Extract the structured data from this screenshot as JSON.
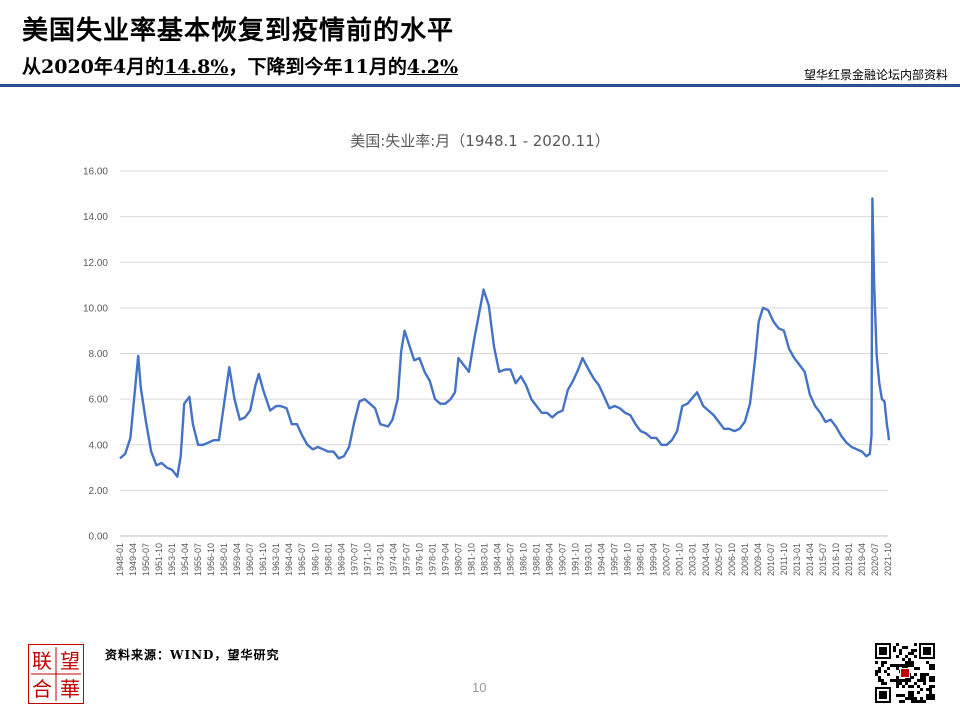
{
  "header": {
    "title": "美国失业率基本恢复到疫情前的水平",
    "subtitle_parts": [
      "从2020年4月的",
      "14.8%",
      "，下降到今年11月的",
      "4.2%"
    ],
    "internal_note": "望华红景金融论坛内部资料"
  },
  "footer": {
    "source": "资料来源：WIND，望华研究",
    "page_number": "10",
    "logo_chars": [
      "联",
      "望",
      "合",
      "華"
    ]
  },
  "colors": {
    "accent": "#2e4f8c",
    "line": "#4472c4",
    "logo": "#c00000"
  },
  "chart_data": {
    "type": "line",
    "title": "美国:失业率:月（1948.1 - 2020.11）",
    "ylim": [
      0,
      16
    ],
    "yticks": [
      "0.00",
      "2.00",
      "4.00",
      "6.00",
      "8.00",
      "10.00",
      "12.00",
      "14.00",
      "16.00"
    ],
    "xlim": [
      "1948-01",
      "2021-10"
    ],
    "xticks": [
      "1948-01",
      "1949-04",
      "1950-07",
      "1951-10",
      "1953-01",
      "1954-04",
      "1955-07",
      "1956-10",
      "1958-01",
      "1959-04",
      "1960-07",
      "1961-10",
      "1963-01",
      "1964-04",
      "1965-07",
      "1966-10",
      "1968-01",
      "1969-04",
      "1970-07",
      "1971-10",
      "1973-01",
      "1974-04",
      "1975-07",
      "1976-10",
      "1978-01",
      "1979-04",
      "1980-07",
      "1981-10",
      "1983-01",
      "1984-04",
      "1985-07",
      "1986-10",
      "1988-01",
      "1989-04",
      "1990-07",
      "1991-10",
      "1993-01",
      "1994-04",
      "1995-07",
      "1996-10",
      "1998-01",
      "1999-04",
      "2000-07",
      "2001-10",
      "2003-01",
      "2004-04",
      "2005-07",
      "2006-10",
      "2008-01",
      "2009-04",
      "2010-07",
      "2011-10",
      "2013-01",
      "2014-04",
      "2015-07",
      "2016-10",
      "2018-01",
      "2019-04",
      "2020-07",
      "2021-10"
    ],
    "grid": true,
    "series": [
      {
        "x": [
          "1948-01",
          "1948-07",
          "1949-01",
          "1949-07",
          "1949-10",
          "1950-01",
          "1950-07",
          "1951-01",
          "1951-07",
          "1952-01",
          "1952-07",
          "1953-01",
          "1953-07",
          "1953-11",
          "1954-03",
          "1954-09",
          "1955-01",
          "1955-07",
          "1956-01",
          "1956-07",
          "1957-01",
          "1957-07",
          "1958-01",
          "1958-07",
          "1959-01",
          "1959-07",
          "1960-01",
          "1960-07",
          "1961-01",
          "1961-05",
          "1961-10",
          "1962-06",
          "1963-01",
          "1963-06",
          "1964-01",
          "1964-07",
          "1965-01",
          "1965-07",
          "1966-01",
          "1966-07",
          "1967-01",
          "1967-07",
          "1968-01",
          "1968-07",
          "1969-01",
          "1969-07",
          "1970-01",
          "1970-07",
          "1971-01",
          "1971-07",
          "1972-01",
          "1972-07",
          "1973-01",
          "1973-10",
          "1974-03",
          "1974-09",
          "1975-01",
          "1975-05",
          "1975-10",
          "1976-04",
          "1976-10",
          "1977-04",
          "1977-10",
          "1978-04",
          "1978-10",
          "1979-04",
          "1979-10",
          "1980-03",
          "1980-07",
          "1981-01",
          "1981-07",
          "1982-01",
          "1982-07",
          "1982-12",
          "1983-06",
          "1983-12",
          "1984-06",
          "1985-01",
          "1985-07",
          "1986-01",
          "1986-07",
          "1987-01",
          "1987-07",
          "1988-01",
          "1988-07",
          "1989-01",
          "1989-07",
          "1990-01",
          "1990-07",
          "1991-01",
          "1991-07",
          "1992-01",
          "1992-06",
          "1993-01",
          "1993-07",
          "1994-01",
          "1994-07",
          "1995-01",
          "1995-07",
          "1996-01",
          "1996-07",
          "1997-01",
          "1997-07",
          "1998-01",
          "1998-07",
          "1999-01",
          "1999-07",
          "2000-01",
          "2000-07",
          "2001-01",
          "2001-07",
          "2002-01",
          "2002-07",
          "2003-06",
          "2004-01",
          "2004-07",
          "2005-01",
          "2005-07",
          "2006-01",
          "2006-07",
          "2007-01",
          "2007-07",
          "2008-01",
          "2008-07",
          "2009-01",
          "2009-05",
          "2009-10",
          "2010-04",
          "2010-10",
          "2011-04",
          "2011-10",
          "2012-04",
          "2012-10",
          "2013-04",
          "2013-10",
          "2014-04",
          "2014-10",
          "2015-04",
          "2015-10",
          "2016-04",
          "2016-10",
          "2017-04",
          "2017-10",
          "2018-04",
          "2018-10",
          "2019-04",
          "2019-09",
          "2020-01",
          "2020-03",
          "2020-04",
          "2020-06",
          "2020-09",
          "2020-12",
          "2021-03",
          "2021-06",
          "2021-09",
          "2021-10",
          "2021-11"
        ],
        "values": [
          3.4,
          3.6,
          4.3,
          6.7,
          7.9,
          6.5,
          5.0,
          3.7,
          3.1,
          3.2,
          3.0,
          2.9,
          2.6,
          3.5,
          5.8,
          6.1,
          4.9,
          4.0,
          4.0,
          4.1,
          4.2,
          4.2,
          5.8,
          7.4,
          6.0,
          5.1,
          5.2,
          5.5,
          6.6,
          7.1,
          6.4,
          5.5,
          5.7,
          5.7,
          5.6,
          4.9,
          4.9,
          4.4,
          4.0,
          3.8,
          3.9,
          3.8,
          3.7,
          3.7,
          3.4,
          3.5,
          3.9,
          5.0,
          5.9,
          6.0,
          5.8,
          5.6,
          4.9,
          4.8,
          5.1,
          6.0,
          8.1,
          9.0,
          8.4,
          7.7,
          7.8,
          7.2,
          6.8,
          6.0,
          5.8,
          5.8,
          6.0,
          6.3,
          7.8,
          7.5,
          7.2,
          8.6,
          9.8,
          10.8,
          10.1,
          8.3,
          7.2,
          7.3,
          7.3,
          6.7,
          7.0,
          6.6,
          6.0,
          5.7,
          5.4,
          5.4,
          5.2,
          5.4,
          5.5,
          6.4,
          6.8,
          7.3,
          7.8,
          7.3,
          6.9,
          6.6,
          6.1,
          5.6,
          5.7,
          5.6,
          5.4,
          5.3,
          4.9,
          4.6,
          4.5,
          4.3,
          4.3,
          4.0,
          4.0,
          4.2,
          4.6,
          5.7,
          5.8,
          6.3,
          5.7,
          5.5,
          5.3,
          5.0,
          4.7,
          4.7,
          4.6,
          4.7,
          5.0,
          5.8,
          7.8,
          9.4,
          10.0,
          9.9,
          9.4,
          9.1,
          9.0,
          8.2,
          7.8,
          7.5,
          7.2,
          6.2,
          5.7,
          5.4,
          5.0,
          5.1,
          4.8,
          4.4,
          4.1,
          3.9,
          3.8,
          3.7,
          3.5,
          3.6,
          4.4,
          14.8,
          11.1,
          7.9,
          6.7,
          6.0,
          5.9,
          4.8,
          4.6,
          4.2
        ]
      }
    ]
  }
}
